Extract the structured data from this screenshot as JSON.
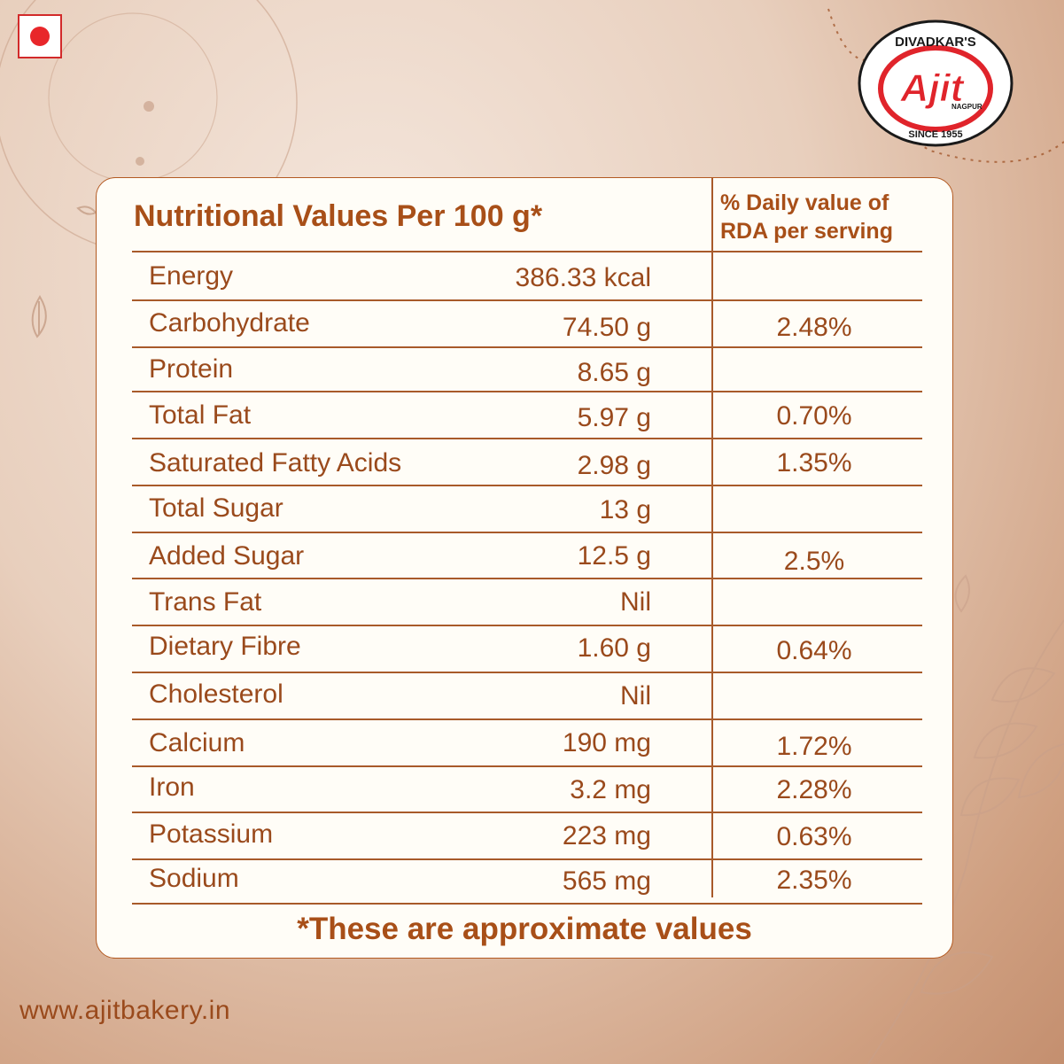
{
  "brand": {
    "top_text": "DIVADKAR'S",
    "name": "Ajit",
    "city": "NAGPUR",
    "since": "SINCE 1955",
    "color_red": "#e0242b"
  },
  "table": {
    "title": "Nutritional Values Per 100 g*",
    "rda_header": "% Daily value of RDA per serving",
    "rows": [
      {
        "name": "Energy",
        "value": "386.33 kcal",
        "rda": ""
      },
      {
        "name": "Carbohydrate",
        "value": "74.50 g",
        "rda": "2.48%"
      },
      {
        "name": "Protein",
        "value": "8.65 g",
        "rda": ""
      },
      {
        "name": "Total Fat",
        "value": "5.97 g",
        "rda": "0.70%"
      },
      {
        "name": "Saturated Fatty Acids",
        "value": "2.98 g",
        "rda": "1.35%"
      },
      {
        "name": "Total Sugar",
        "value": "13 g",
        "rda": ""
      },
      {
        "name": "Added Sugar",
        "value": "12.5 g",
        "rda": "2.5%"
      },
      {
        "name": "Trans Fat",
        "value": "Nil",
        "rda": ""
      },
      {
        "name": "Dietary Fibre",
        "value": "1.60 g",
        "rda": "0.64%"
      },
      {
        "name": "Cholesterol",
        "value": "Nil",
        "rda": ""
      },
      {
        "name": "Calcium",
        "value": "190 mg",
        "rda": "1.72%"
      },
      {
        "name": "Iron",
        "value": "3.2 mg",
        "rda": "2.28%"
      },
      {
        "name": "Potassium",
        "value": "223 mg",
        "rda": "0.63%"
      },
      {
        "name": "Sodium",
        "value": "565 mg",
        "rda": "2.35%"
      }
    ],
    "footnote": "*These are approximate values"
  },
  "website": "www.ajitbakery.in",
  "colors": {
    "accent": "#a84f18",
    "card": "#fffdf7",
    "veg_dot": "#e8262a"
  }
}
